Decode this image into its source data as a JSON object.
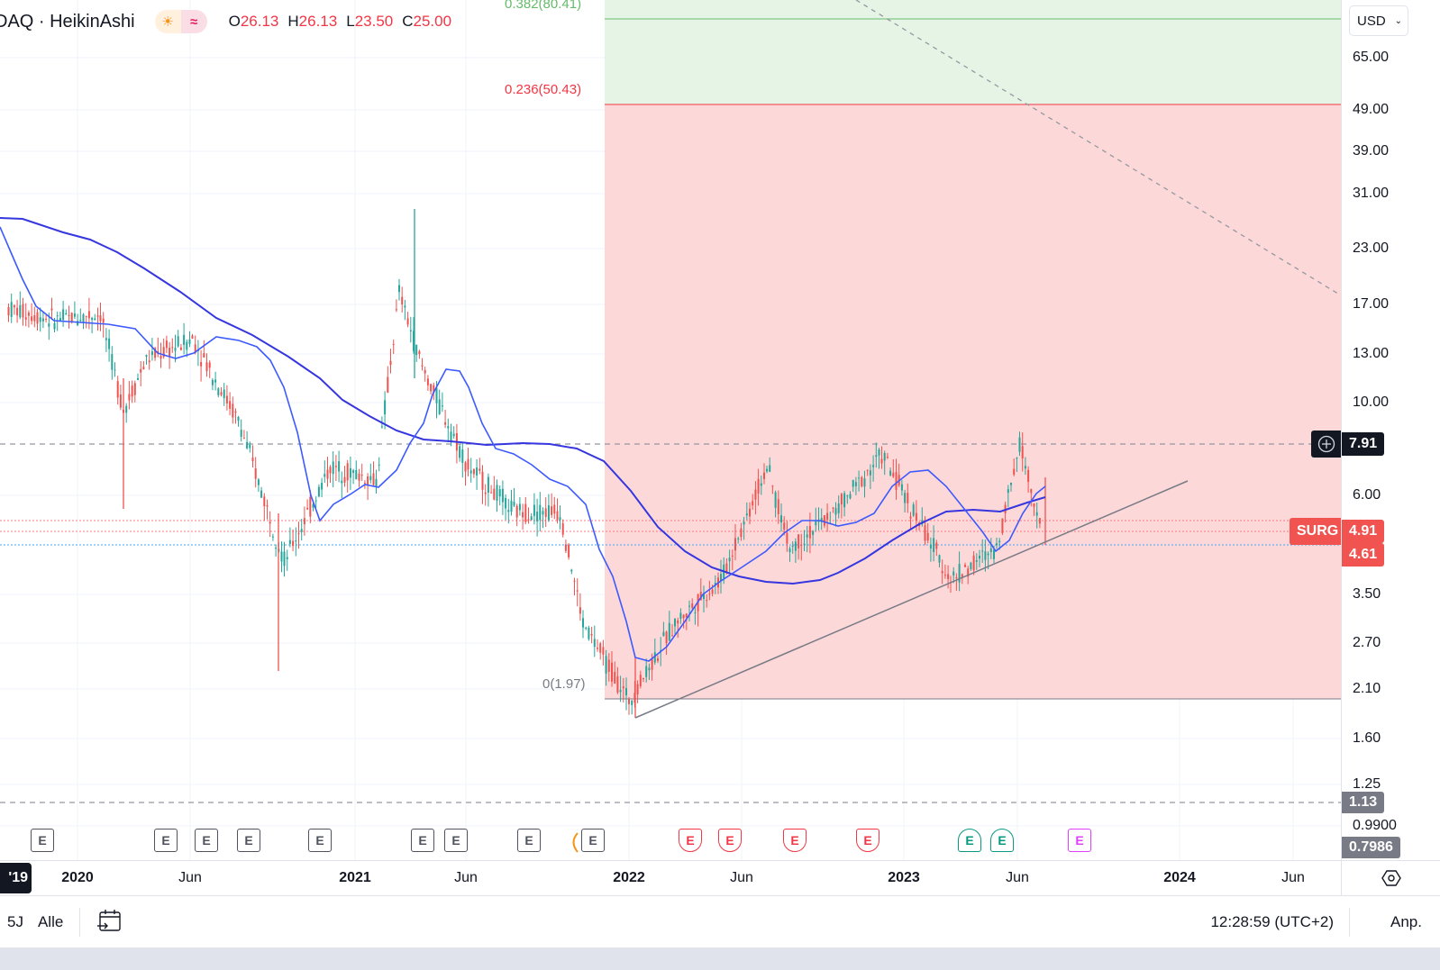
{
  "legend": {
    "symbol": "DAQ · HeikinAshi",
    "badges": [
      {
        "name": "market-session-icon",
        "glyph": "☀"
      },
      {
        "name": "delayed-data-icon",
        "glyph": "≈"
      }
    ],
    "ohlc": [
      {
        "key": "O",
        "value": "26.13"
      },
      {
        "key": "H",
        "value": "26.13"
      },
      {
        "key": "L",
        "value": "23.50"
      },
      {
        "key": "C",
        "value": "25.00"
      }
    ]
  },
  "fibonacci": {
    "levels": [
      {
        "label": "0.382(80.41)",
        "color": "#66bb6a"
      },
      {
        "label": "0.236(50.43)",
        "color": "#f23645"
      },
      {
        "label": "0(1.97)",
        "color": "#787b86"
      }
    ]
  },
  "price_axis": {
    "currency": "USD",
    "ticks": [
      "65.00",
      "49.00",
      "39.00",
      "31.00",
      "23.00",
      "17.00",
      "13.00",
      "10.00",
      "6.00",
      "3.50",
      "2.70",
      "2.10",
      "1.60",
      "1.25",
      "0.9900"
    ],
    "tags": {
      "crosshair": "7.91",
      "symbol_name": "SURG",
      "last_price": "4.91",
      "prev_close": "4.61",
      "low_line": "1.13",
      "bottom": "0.7986"
    }
  },
  "time_axis": {
    "cursor_label": "'19",
    "labels": [
      {
        "text": "2020",
        "kind": "year"
      },
      {
        "text": "Jun",
        "kind": "month"
      },
      {
        "text": "2021",
        "kind": "year"
      },
      {
        "text": "Jun",
        "kind": "month"
      },
      {
        "text": "2022",
        "kind": "year"
      },
      {
        "text": "Jun",
        "kind": "month"
      },
      {
        "text": "2023",
        "kind": "year"
      },
      {
        "text": "Jun",
        "kind": "month"
      },
      {
        "text": "2024",
        "kind": "year"
      },
      {
        "text": "Jun",
        "kind": "month"
      }
    ]
  },
  "earnings": {
    "label": "E",
    "colors": {
      "past": "#50535e",
      "miss": "#f23645",
      "beat": "#089981",
      "upcoming": "#e040fb"
    }
  },
  "bottom_bar": {
    "ranges": [
      "5J",
      "Alle"
    ],
    "clock": "12:28:59 (UTC+2)",
    "adjust": "Anp."
  },
  "colors": {
    "up": "#26a69a",
    "down": "#ef5350",
    "ma_fast": "#3d5afe",
    "ma_slow": "#3636e0",
    "fib_green": "#e6f4e6",
    "fib_red": "#fdd8d8"
  },
  "chart_data": {
    "type": "candlestick",
    "title": "DAQ · HeikinAshi",
    "scale": "log",
    "ylabel": "USD",
    "x_ticks": [
      "2020",
      "Jun",
      "2021",
      "Jun",
      "2022",
      "Jun",
      "2023",
      "Jun",
      "2024",
      "Jun"
    ],
    "y_ticks": [
      65,
      49,
      39,
      31,
      23,
      17,
      13,
      10,
      6,
      3.5,
      2.7,
      2.1,
      1.6,
      1.25,
      0.99
    ],
    "approx_close_path": [
      {
        "x": "2019-10",
        "close": 16.5
      },
      {
        "x": "2019-12",
        "close": 15.5
      },
      {
        "x": "2020-02",
        "close": 16.0
      },
      {
        "x": "2020-03",
        "close": 9.5
      },
      {
        "x": "2020-04",
        "close": 12.5
      },
      {
        "x": "2020-06",
        "close": 14.0
      },
      {
        "x": "2020-08",
        "close": 9.0
      },
      {
        "x": "2020-10",
        "close": 4.2
      },
      {
        "x": "2020-12",
        "close": 7.0
      },
      {
        "x": "2021-02",
        "close": 6.5
      },
      {
        "x": "2021-03",
        "close": 18.0
      },
      {
        "x": "2021-04",
        "close": 12.0
      },
      {
        "x": "2021-06",
        "close": 7.0
      },
      {
        "x": "2021-08",
        "close": 5.5
      },
      {
        "x": "2021-10",
        "close": 5.5
      },
      {
        "x": "2021-11",
        "close": 3.0
      },
      {
        "x": "2022-01",
        "close": 1.97
      },
      {
        "x": "2022-03",
        "close": 3.0
      },
      {
        "x": "2022-05",
        "close": 3.8
      },
      {
        "x": "2022-07",
        "close": 7.0
      },
      {
        "x": "2022-08",
        "close": 4.5
      },
      {
        "x": "2022-10",
        "close": 5.5
      },
      {
        "x": "2022-12",
        "close": 7.5
      },
      {
        "x": "2023-03",
        "close": 3.8
      },
      {
        "x": "2023-05",
        "close": 4.5
      },
      {
        "x": "2023-06",
        "close": 8.0
      },
      {
        "x": "2023-07",
        "close": 4.91
      }
    ],
    "overlays": {
      "fib_levels": [
        {
          "ratio": 0.382,
          "price": 80.41
        },
        {
          "ratio": 0.236,
          "price": 50.43
        },
        {
          "ratio": 0,
          "price": 1.97
        }
      ],
      "horizontal_lines": [
        7.91,
        1.13
      ],
      "last_price": 4.91,
      "prev_close": 4.61,
      "moving_averages": [
        "fast MA (blue)",
        "slow MA (dark blue)"
      ],
      "trendlines": [
        "ascending support from 2022-01 low",
        "descending dashed line from top"
      ]
    }
  }
}
